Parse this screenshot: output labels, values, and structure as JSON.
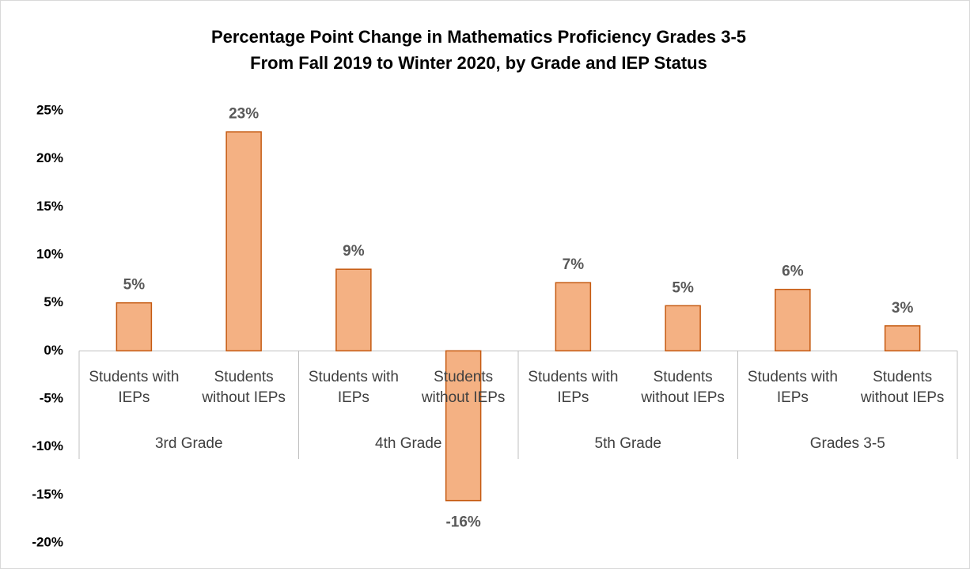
{
  "chart_data": {
    "type": "bar",
    "title": "Percentage Point Change in Mathematics Proficiency Grades 3-5",
    "subtitle": "From Fall 2019 to Winter 2020, by Grade and IEP Status",
    "categories": [
      "Students with IEPs",
      "Students without IEPs",
      "Students with IEPs",
      "Students without IEPs",
      "Students with IEPs",
      "Students without IEPs",
      "Students with IEPs",
      "Students without IEPs"
    ],
    "groups": [
      "3rd Grade",
      "4th Grade",
      "5th Grade",
      "Grades 3-5"
    ],
    "values": [
      5.0,
      22.8,
      8.5,
      -15.6,
      7.1,
      4.7,
      6.4,
      2.6
    ],
    "value_labels": [
      "5%",
      "23%",
      "9%",
      "-16%",
      "7%",
      "5%",
      "6%",
      "3%"
    ],
    "color": "#F4B183",
    "edge_color": "#C55A11",
    "ylim": [
      -20,
      25
    ],
    "yticks": [
      {
        "value": -20,
        "label": "-20%"
      },
      {
        "value": -15,
        "label": "-15%"
      },
      {
        "value": -10,
        "label": "-10%"
      },
      {
        "value": -5,
        "label": "-5%"
      },
      {
        "value": 0,
        "label": "0%"
      },
      {
        "value": 5,
        "label": "5%"
      },
      {
        "value": 10,
        "label": "10%"
      },
      {
        "value": 15,
        "label": "15%"
      },
      {
        "value": 20,
        "label": "20%"
      },
      {
        "value": 25,
        "label": "25%"
      }
    ],
    "grid": false
  }
}
